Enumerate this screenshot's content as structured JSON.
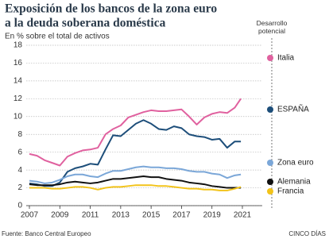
{
  "chart_data": {
    "type": "line",
    "title": [
      "Exposición de los bancos de la zona euro",
      "a la deuda soberana doméstica"
    ],
    "subtitle": "En % sobre el total de activos",
    "legend_title": "Desarrollo potencial",
    "source": "Fuente: Banco Central Europeo",
    "credit": "CINCO DÍAS",
    "legend": "right",
    "grid": true,
    "x": [
      2007,
      2007.5,
      2008,
      2008.5,
      2009,
      2009.5,
      2010,
      2010.5,
      2011,
      2011.5,
      2012,
      2012.5,
      2013,
      2013.5,
      2014,
      2014.5,
      2015,
      2015.5,
      2016,
      2016.5,
      2017,
      2017.5,
      2018,
      2018.5,
      2019,
      2019.5,
      2020,
      2020.5,
      2020.9
    ],
    "xlim": [
      2007,
      2021
    ],
    "xticks": [
      2007,
      2009,
      2011,
      2013,
      2015,
      2017,
      2019,
      2021
    ],
    "ylim": [
      0,
      18
    ],
    "yticks": [
      0,
      2,
      4,
      6,
      8,
      10,
      12,
      14,
      16,
      18
    ],
    "series": [
      {
        "name": "Italia",
        "color": "#e0619f",
        "values": [
          5.8,
          5.6,
          5.1,
          4.8,
          4.5,
          5.5,
          5.9,
          6.2,
          6.3,
          6.5,
          8.0,
          8.6,
          9.0,
          9.9,
          10.2,
          10.5,
          10.7,
          10.6,
          10.6,
          10.7,
          10.8,
          10.0,
          9.1,
          9.9,
          10.3,
          10.5,
          10.4,
          11.0,
          12.0
        ]
      },
      {
        "name": "ESPAÑA",
        "color": "#1d4e7a",
        "values": [
          2.5,
          2.4,
          2.2,
          2.2,
          2.6,
          3.8,
          4.2,
          4.4,
          4.7,
          4.6,
          6.3,
          7.9,
          7.8,
          8.5,
          9.2,
          9.6,
          9.2,
          8.6,
          8.5,
          8.9,
          8.7,
          8.0,
          7.8,
          7.7,
          7.4,
          7.5,
          6.5,
          7.2,
          7.2
        ]
      },
      {
        "name": "Zona euro",
        "color": "#7ba7d8",
        "values": [
          2.8,
          2.7,
          2.5,
          2.6,
          2.9,
          3.3,
          3.5,
          3.5,
          3.3,
          3.2,
          3.6,
          3.9,
          3.9,
          4.1,
          4.3,
          4.4,
          4.3,
          4.3,
          4.2,
          4.2,
          4.1,
          3.9,
          3.8,
          3.8,
          3.6,
          3.5,
          3.1,
          3.4,
          3.5
        ]
      },
      {
        "name": "Alemania",
        "color": "#111111",
        "values": [
          2.4,
          2.3,
          2.3,
          2.3,
          2.4,
          2.6,
          2.7,
          2.6,
          2.5,
          2.6,
          2.8,
          3.0,
          3.0,
          3.1,
          3.2,
          3.3,
          3.2,
          3.2,
          3.0,
          2.9,
          2.8,
          2.6,
          2.5,
          2.4,
          2.2,
          2.1,
          2.0,
          2.0,
          2.0
        ]
      },
      {
        "name": "Francia",
        "color": "#f2c31a",
        "values": [
          2.0,
          2.0,
          2.0,
          1.9,
          1.9,
          2.0,
          2.1,
          2.1,
          2.0,
          1.8,
          2.0,
          2.1,
          2.1,
          2.2,
          2.3,
          2.3,
          2.3,
          2.2,
          2.2,
          2.1,
          2.0,
          1.9,
          1.9,
          1.8,
          1.8,
          1.7,
          1.7,
          1.9,
          2.1
        ]
      }
    ]
  }
}
